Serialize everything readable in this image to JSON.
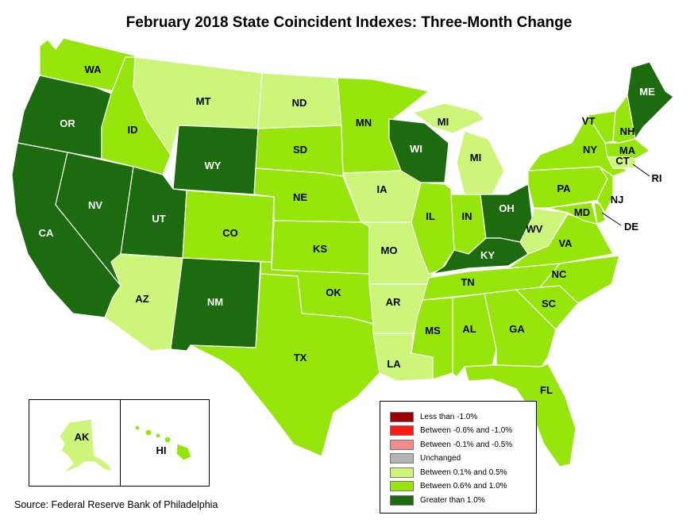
{
  "title": "February 2018 State Coincident Indexes: Three-Month Change",
  "source": "Source: Federal Reserve Bank of Philadelphia",
  "colors": {
    "less_than_neg_1": "#9b0000",
    "neg_06_to_neg_1": "#ff1a1a",
    "neg_01_to_neg_05": "#f28b8b",
    "unchanged": "#b3b3b3",
    "pos_01_to_05": "#ccf57a",
    "pos_06_to_10": "#96e60c",
    "greater_than_1": "#1d6b0f"
  },
  "legend": [
    {
      "label": "Less than -1.0%",
      "color": "#9b0000"
    },
    {
      "label": "Between -0.6% and -1.0%",
      "color": "#ff1a1a"
    },
    {
      "label": "Between -0.1% and -0.5%",
      "color": "#f28b8b"
    },
    {
      "label": "Unchanged",
      "color": "#b3b3b3"
    },
    {
      "label": "Between 0.1% and 0.5%",
      "color": "#ccf57a"
    },
    {
      "label": "Between 0.6% and 1.0%",
      "color": "#96e60c"
    },
    {
      "label": "Greater than 1.0%",
      "color": "#1d6b0f"
    }
  ],
  "states": {
    "WA": {
      "label": "WA",
      "category": "Between 0.6% and 1.0%"
    },
    "OR": {
      "label": "OR",
      "category": "Greater than 1.0%"
    },
    "CA": {
      "label": "CA",
      "category": "Greater than 1.0%"
    },
    "NV": {
      "label": "NV",
      "category": "Greater than 1.0%"
    },
    "ID": {
      "label": "ID",
      "category": "Between 0.6% and 1.0%"
    },
    "MT": {
      "label": "MT",
      "category": "Between 0.1% and 0.5%"
    },
    "WY": {
      "label": "WY",
      "category": "Greater than 1.0%"
    },
    "UT": {
      "label": "UT",
      "category": "Greater than 1.0%"
    },
    "AZ": {
      "label": "AZ",
      "category": "Between 0.1% and 0.5%"
    },
    "CO": {
      "label": "CO",
      "category": "Between 0.6% and 1.0%"
    },
    "NM": {
      "label": "NM",
      "category": "Greater than 1.0%"
    },
    "ND": {
      "label": "ND",
      "category": "Between 0.1% and 0.5%"
    },
    "SD": {
      "label": "SD",
      "category": "Between 0.6% and 1.0%"
    },
    "NE": {
      "label": "NE",
      "category": "Between 0.6% and 1.0%"
    },
    "KS": {
      "label": "KS",
      "category": "Between 0.6% and 1.0%"
    },
    "OK": {
      "label": "OK",
      "category": "Between 0.6% and 1.0%"
    },
    "TX": {
      "label": "TX",
      "category": "Between 0.6% and 1.0%"
    },
    "MN": {
      "label": "MN",
      "category": "Between 0.6% and 1.0%"
    },
    "IA": {
      "label": "IA",
      "category": "Between 0.1% and 0.5%"
    },
    "MO": {
      "label": "MO",
      "category": "Between 0.1% and 0.5%"
    },
    "AR": {
      "label": "AR",
      "category": "Between 0.1% and 0.5%"
    },
    "LA": {
      "label": "LA",
      "category": "Between 0.1% and 0.5%"
    },
    "WI": {
      "label": "WI",
      "category": "Greater than 1.0%"
    },
    "IL": {
      "label": "IL",
      "category": "Between 0.6% and 1.0%"
    },
    "MI": {
      "label": "MI",
      "category": "Between 0.1% and 0.5%"
    },
    "MI_UP": {
      "label": "MI",
      "category": "Between 0.1% and 0.5%"
    },
    "IN": {
      "label": "IN",
      "category": "Between 0.6% and 1.0%"
    },
    "OH": {
      "label": "OH",
      "category": "Greater than 1.0%"
    },
    "KY": {
      "label": "KY",
      "category": "Greater than 1.0%"
    },
    "TN": {
      "label": "TN",
      "category": "Between 0.6% and 1.0%"
    },
    "MS": {
      "label": "MS",
      "category": "Between 0.6% and 1.0%"
    },
    "AL": {
      "label": "AL",
      "category": "Between 0.6% and 1.0%"
    },
    "GA": {
      "label": "GA",
      "category": "Between 0.6% and 1.0%"
    },
    "FL": {
      "label": "FL",
      "category": "Between 0.6% and 1.0%"
    },
    "SC": {
      "label": "SC",
      "category": "Between 0.6% and 1.0%"
    },
    "NC": {
      "label": "NC",
      "category": "Between 0.6% and 1.0%"
    },
    "VA": {
      "label": "VA",
      "category": "Between 0.6% and 1.0%"
    },
    "WV": {
      "label": "WV",
      "category": "Between 0.1% and 0.5%"
    },
    "MD": {
      "label": "MD",
      "category": "Between 0.6% and 1.0%"
    },
    "DE": {
      "label": "DE",
      "category": "Between 0.6% and 1.0%"
    },
    "PA": {
      "label": "PA",
      "category": "Between 0.6% and 1.0%"
    },
    "NJ": {
      "label": "NJ",
      "category": "Between 0.6% and 1.0%"
    },
    "NY": {
      "label": "NY",
      "category": "Between 0.6% and 1.0%"
    },
    "CT": {
      "label": "CT",
      "category": "Between 0.1% and 0.5%"
    },
    "RI": {
      "label": "RI",
      "category": "Between 0.1% and 0.5%"
    },
    "MA": {
      "label": "MA",
      "category": "Between 0.6% and 1.0%"
    },
    "VT": {
      "label": "VT",
      "category": "Between 0.6% and 1.0%"
    },
    "NH": {
      "label": "NH",
      "category": "Between 0.6% and 1.0%"
    },
    "ME": {
      "label": "ME",
      "category": "Greater than 1.0%"
    },
    "AK": {
      "label": "AK",
      "category": "Between 0.1% and 0.5%"
    },
    "HI": {
      "label": "HI",
      "category": "Between 0.6% and 1.0%"
    }
  }
}
